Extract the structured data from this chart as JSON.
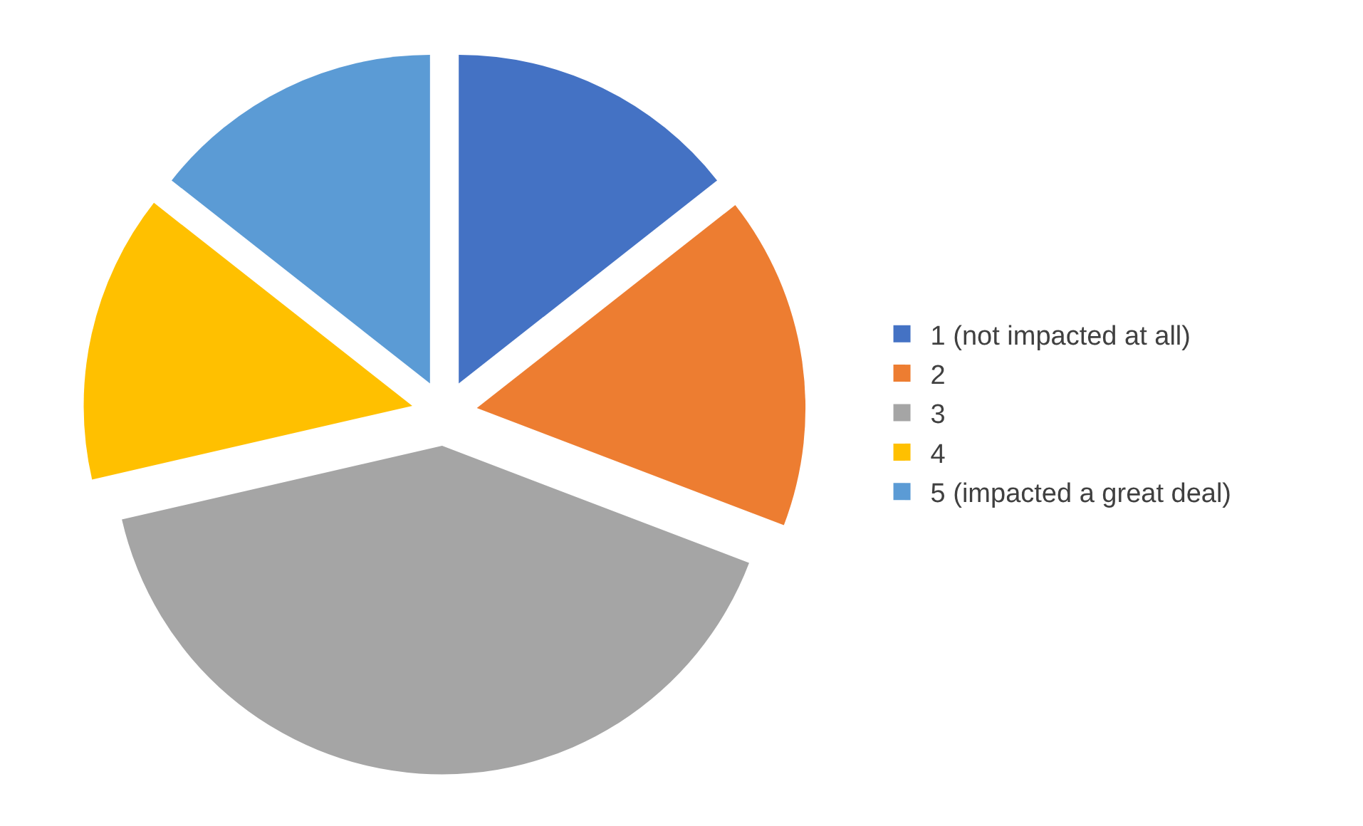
{
  "chart_data": {
    "type": "pie",
    "categories": [
      "1 (not impacted at all)",
      "2",
      "3",
      "4",
      "5 (impacted a great deal)"
    ],
    "values": [
      14.4,
      16.4,
      40.6,
      14.2,
      14.4
    ],
    "colors": [
      "#4472c4",
      "#ed7d31",
      "#a5a5a5",
      "#ffc000",
      "#5b9bd5"
    ],
    "legend": "right"
  }
}
